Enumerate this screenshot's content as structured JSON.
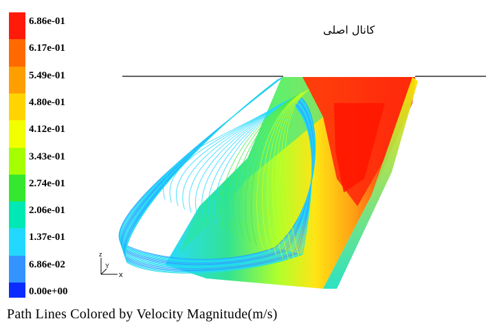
{
  "legend": {
    "ticks": [
      "6.86e-01",
      "6.17e-01",
      "5.49e-01",
      "4.80e-01",
      "4.12e-01",
      "3.43e-01",
      "2.74e-01",
      "2.06e-01",
      "1.37e-01",
      "6.86e-02",
      "0.00e+00"
    ],
    "colors": [
      "#ff1a0a",
      "#ff6a00",
      "#ff9e00",
      "#ffd400",
      "#f2ff00",
      "#a6ff00",
      "#35e82f",
      "#00e8b4",
      "#22d8ff",
      "#3394ff",
      "#0a2cff"
    ]
  },
  "channel_label": "کانال اصلی",
  "axis_triad": {
    "z": "z",
    "y": "Y",
    "x": "x"
  },
  "caption": "Path Lines Colored by Velocity Magnitude(m/s)"
}
